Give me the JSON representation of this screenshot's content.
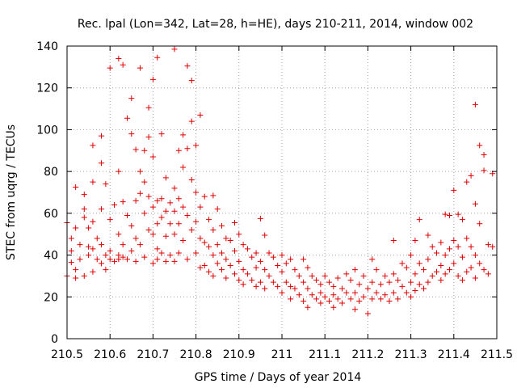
{
  "chart_data": {
    "type": "scatter",
    "title": "Rec. lpal (Lon=342, Lat=28, h=HE), days 210-211, 2014, window 002",
    "xlabel": "GPS time / Days of year 2014",
    "ylabel": "STEC from uqrg / TECUs",
    "xlim": [
      210.5,
      211.5
    ],
    "ylim": [
      0,
      140
    ],
    "xticks": [
      210.5,
      210.6,
      210.7,
      210.8,
      210.9,
      211,
      211.1,
      211.2,
      211.3,
      211.4,
      211.5
    ],
    "xtick_labels": [
      "210.5",
      "210.6",
      "210.7",
      "210.8",
      "210.9",
      "211",
      "211.1",
      "211.2",
      "211.3",
      "211.4",
      "211.5"
    ],
    "yticks": [
      0,
      20,
      40,
      60,
      80,
      100,
      120,
      140
    ],
    "ytick_labels": [
      "0",
      "20",
      "40",
      "60",
      "80",
      "100",
      "120",
      "140"
    ],
    "grid": true,
    "legend": "none",
    "marker": "+",
    "color": "#e00000",
    "series": [
      {
        "points": [
          [
            210.5,
            55.5
          ],
          [
            210.5,
            30
          ],
          [
            210.51,
            48
          ],
          [
            210.51,
            36.5
          ],
          [
            210.51,
            42
          ],
          [
            210.52,
            72.5
          ],
          [
            210.52,
            53
          ],
          [
            210.52,
            33
          ],
          [
            210.52,
            29
          ],
          [
            210.53,
            45
          ],
          [
            210.53,
            38
          ],
          [
            210.54,
            69
          ],
          [
            210.54,
            62
          ],
          [
            210.54,
            58
          ],
          [
            210.54,
            30
          ],
          [
            210.55,
            53
          ],
          [
            210.55,
            44
          ],
          [
            210.55,
            40
          ],
          [
            210.56,
            92.5
          ],
          [
            210.56,
            75
          ],
          [
            210.56,
            56
          ],
          [
            210.56,
            43
          ],
          [
            210.56,
            32
          ],
          [
            210.57,
            48
          ],
          [
            210.57,
            38
          ],
          [
            210.58,
            97
          ],
          [
            210.58,
            84
          ],
          [
            210.58,
            62
          ],
          [
            210.58,
            45
          ],
          [
            210.58,
            36
          ],
          [
            210.59,
            74
          ],
          [
            210.59,
            40
          ],
          [
            210.59,
            33
          ],
          [
            210.6,
            129.5
          ],
          [
            210.6,
            57
          ],
          [
            210.6,
            42
          ],
          [
            210.6,
            38
          ],
          [
            210.61,
            64
          ],
          [
            210.61,
            37
          ],
          [
            210.62,
            134
          ],
          [
            210.62,
            80
          ],
          [
            210.62,
            50
          ],
          [
            210.62,
            40
          ],
          [
            210.62,
            38
          ],
          [
            210.63,
            131
          ],
          [
            210.63,
            65.5
          ],
          [
            210.63,
            45
          ],
          [
            210.63,
            39
          ],
          [
            210.64,
            105.5
          ],
          [
            210.64,
            59
          ],
          [
            210.64,
            38
          ],
          [
            210.65,
            115
          ],
          [
            210.65,
            98
          ],
          [
            210.65,
            54
          ],
          [
            210.65,
            42
          ],
          [
            210.66,
            90.5
          ],
          [
            210.66,
            66
          ],
          [
            210.66,
            48
          ],
          [
            210.66,
            37
          ],
          [
            210.67,
            129.5
          ],
          [
            210.67,
            80
          ],
          [
            210.67,
            69.5
          ],
          [
            210.67,
            45
          ],
          [
            210.68,
            90
          ],
          [
            210.68,
            75
          ],
          [
            210.68,
            60
          ],
          [
            210.68,
            39
          ],
          [
            210.69,
            110.5
          ],
          [
            210.69,
            96.5
          ],
          [
            210.69,
            68
          ],
          [
            210.69,
            52
          ],
          [
            210.7,
            124
          ],
          [
            210.7,
            87
          ],
          [
            210.7,
            63
          ],
          [
            210.7,
            50
          ],
          [
            210.7,
            36
          ],
          [
            210.71,
            134.5
          ],
          [
            210.71,
            66
          ],
          [
            210.71,
            55
          ],
          [
            210.71,
            43
          ],
          [
            210.71,
            38
          ],
          [
            210.72,
            98
          ],
          [
            210.72,
            67
          ],
          [
            210.72,
            58
          ],
          [
            210.72,
            41
          ],
          [
            210.73,
            77
          ],
          [
            210.73,
            61
          ],
          [
            210.73,
            49
          ],
          [
            210.73,
            37
          ],
          [
            210.74,
            65
          ],
          [
            210.74,
            55
          ],
          [
            210.74,
            40
          ],
          [
            210.75,
            138.5
          ],
          [
            210.75,
            72
          ],
          [
            210.75,
            61
          ],
          [
            210.75,
            50
          ],
          [
            210.75,
            37
          ],
          [
            210.76,
            90
          ],
          [
            210.76,
            67
          ],
          [
            210.76,
            55
          ],
          [
            210.76,
            41
          ],
          [
            210.77,
            97.5
          ],
          [
            210.77,
            82
          ],
          [
            210.77,
            63
          ],
          [
            210.77,
            47
          ],
          [
            210.78,
            130.5
          ],
          [
            210.78,
            91
          ],
          [
            210.78,
            59
          ],
          [
            210.78,
            38
          ],
          [
            210.79,
            123.5
          ],
          [
            210.79,
            104
          ],
          [
            210.79,
            76
          ],
          [
            210.79,
            52
          ],
          [
            210.8,
            92.5
          ],
          [
            210.8,
            70
          ],
          [
            210.8,
            56
          ],
          [
            210.8,
            41
          ],
          [
            210.81,
            107
          ],
          [
            210.81,
            63
          ],
          [
            210.81,
            48
          ],
          [
            210.81,
            34
          ],
          [
            210.82,
            68
          ],
          [
            210.82,
            46
          ],
          [
            210.82,
            35
          ],
          [
            210.83,
            57
          ],
          [
            210.83,
            44
          ],
          [
            210.83,
            32
          ],
          [
            210.84,
            68.5
          ],
          [
            210.84,
            52
          ],
          [
            210.84,
            40
          ],
          [
            210.84,
            30
          ],
          [
            210.85,
            62
          ],
          [
            210.85,
            45
          ],
          [
            210.85,
            36
          ],
          [
            210.86,
            54
          ],
          [
            210.86,
            41
          ],
          [
            210.86,
            33
          ],
          [
            210.87,
            48
          ],
          [
            210.87,
            38
          ],
          [
            210.87,
            29
          ],
          [
            210.88,
            47
          ],
          [
            210.88,
            35
          ],
          [
            210.89,
            55.5
          ],
          [
            210.89,
            42
          ],
          [
            210.89,
            31
          ],
          [
            210.9,
            50
          ],
          [
            210.9,
            37
          ],
          [
            210.9,
            28
          ],
          [
            210.91,
            45
          ],
          [
            210.91,
            33
          ],
          [
            210.91,
            26
          ],
          [
            210.92,
            43
          ],
          [
            210.92,
            31
          ],
          [
            210.93,
            39
          ],
          [
            210.93,
            28
          ],
          [
            210.94,
            41
          ],
          [
            210.94,
            34
          ],
          [
            210.94,
            25
          ],
          [
            210.95,
            57.5
          ],
          [
            210.95,
            37
          ],
          [
            210.95,
            27
          ],
          [
            210.96,
            49.5
          ],
          [
            210.96,
            33
          ],
          [
            210.96,
            24
          ],
          [
            210.97,
            41
          ],
          [
            210.97,
            30
          ],
          [
            210.98,
            39
          ],
          [
            210.98,
            27
          ],
          [
            210.99,
            35
          ],
          [
            210.99,
            25
          ],
          [
            211.0,
            40
          ],
          [
            211.0,
            32
          ],
          [
            211.0,
            22
          ],
          [
            211.01,
            36
          ],
          [
            211.01,
            27
          ],
          [
            211.02,
            38
          ],
          [
            211.02,
            25
          ],
          [
            211.02,
            19
          ],
          [
            211.03,
            33
          ],
          [
            211.03,
            24
          ],
          [
            211.04,
            30
          ],
          [
            211.04,
            21
          ],
          [
            211.05,
            38
          ],
          [
            211.05,
            27
          ],
          [
            211.05,
            18
          ],
          [
            211.06,
            34
          ],
          [
            211.06,
            24
          ],
          [
            211.06,
            15
          ],
          [
            211.07,
            30
          ],
          [
            211.07,
            21
          ],
          [
            211.08,
            28
          ],
          [
            211.08,
            19
          ],
          [
            211.09,
            26
          ],
          [
            211.09,
            22
          ],
          [
            211.09,
            17
          ],
          [
            211.1,
            30
          ],
          [
            211.1,
            20
          ],
          [
            211.11,
            27
          ],
          [
            211.11,
            18
          ],
          [
            211.12,
            25
          ],
          [
            211.12,
            21
          ],
          [
            211.12,
            15
          ],
          [
            211.13,
            29
          ],
          [
            211.13,
            19
          ],
          [
            211.14,
            24
          ],
          [
            211.14,
            17
          ],
          [
            211.15,
            31
          ],
          [
            211.15,
            22
          ],
          [
            211.16,
            28
          ],
          [
            211.16,
            19
          ],
          [
            211.17,
            33
          ],
          [
            211.17,
            22
          ],
          [
            211.17,
            14
          ],
          [
            211.18,
            26
          ],
          [
            211.18,
            18
          ],
          [
            211.19,
            30
          ],
          [
            211.19,
            20
          ],
          [
            211.2,
            24
          ],
          [
            211.2,
            12
          ],
          [
            211.21,
            38
          ],
          [
            211.21,
            27
          ],
          [
            211.21,
            19
          ],
          [
            211.22,
            33
          ],
          [
            211.22,
            22
          ],
          [
            211.23,
            26
          ],
          [
            211.23,
            19
          ],
          [
            211.24,
            30
          ],
          [
            211.24,
            21
          ],
          [
            211.25,
            27
          ],
          [
            211.25,
            18
          ],
          [
            211.26,
            47
          ],
          [
            211.26,
            31
          ],
          [
            211.26,
            22
          ],
          [
            211.27,
            28
          ],
          [
            211.27,
            19
          ],
          [
            211.28,
            36
          ],
          [
            211.28,
            25
          ],
          [
            211.29,
            34
          ],
          [
            211.29,
            22
          ],
          [
            211.3,
            40
          ],
          [
            211.3,
            27
          ],
          [
            211.3,
            20
          ],
          [
            211.31,
            47
          ],
          [
            211.31,
            31
          ],
          [
            211.31,
            23
          ],
          [
            211.32,
            57
          ],
          [
            211.32,
            36
          ],
          [
            211.32,
            26
          ],
          [
            211.33,
            33
          ],
          [
            211.33,
            24
          ],
          [
            211.34,
            49.5
          ],
          [
            211.34,
            38
          ],
          [
            211.34,
            27
          ],
          [
            211.35,
            44
          ],
          [
            211.35,
            30
          ],
          [
            211.36,
            41
          ],
          [
            211.36,
            32
          ],
          [
            211.37,
            46
          ],
          [
            211.37,
            35
          ],
          [
            211.37,
            28
          ],
          [
            211.38,
            59.5
          ],
          [
            211.38,
            40
          ],
          [
            211.38,
            31
          ],
          [
            211.39,
            59
          ],
          [
            211.39,
            43
          ],
          [
            211.39,
            33
          ],
          [
            211.4,
            71
          ],
          [
            211.4,
            47
          ],
          [
            211.4,
            36
          ],
          [
            211.41,
            59.5
          ],
          [
            211.41,
            44
          ],
          [
            211.41,
            30
          ],
          [
            211.42,
            57
          ],
          [
            211.42,
            39
          ],
          [
            211.42,
            28
          ],
          [
            211.43,
            75
          ],
          [
            211.43,
            48
          ],
          [
            211.43,
            32
          ],
          [
            211.44,
            78
          ],
          [
            211.44,
            44
          ],
          [
            211.44,
            34
          ],
          [
            211.45,
            112
          ],
          [
            211.45,
            64.5
          ],
          [
            211.45,
            40
          ],
          [
            211.45,
            29
          ],
          [
            211.46,
            92.5
          ],
          [
            211.46,
            55
          ],
          [
            211.46,
            36
          ],
          [
            211.47,
            88
          ],
          [
            211.47,
            80.5
          ],
          [
            211.47,
            33
          ],
          [
            211.48,
            45
          ],
          [
            211.48,
            31
          ],
          [
            211.49,
            79
          ],
          [
            211.49,
            44
          ]
        ]
      }
    ]
  }
}
